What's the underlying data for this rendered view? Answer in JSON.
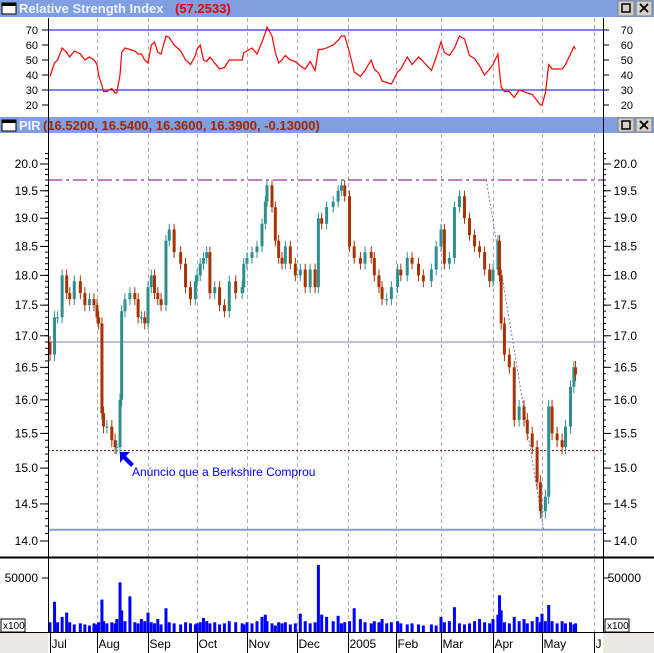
{
  "rsi_panel": {
    "title": "Relative Strength Index",
    "value": "(57.2533)",
    "buttons": [
      "maximize",
      "close"
    ],
    "y_ticks": [
      "20",
      "30",
      "40",
      "50",
      "60",
      "70"
    ],
    "ylim": [
      15,
      80
    ],
    "levels": [
      30,
      70
    ]
  },
  "price_panel": {
    "title": "PIR",
    "value": "(16.5200, 16.5400, 16.3600, 16.3900, -0.13000)",
    "buttons": [
      "maximize",
      "close"
    ],
    "y_ticks": [
      "14.0",
      "14.5",
      "15.0",
      "15.5",
      "16.0",
      "16.5",
      "17.0",
      "17.5",
      "18.0",
      "18.5",
      "19.0",
      "19.5",
      "20.0"
    ],
    "scale": "log",
    "annotation": "Anúncio que a Berkshire Comprou",
    "lines": [
      {
        "type": "horizontal",
        "price": 19.7,
        "style": "dash-dot",
        "color": "#800080"
      },
      {
        "type": "horizontal",
        "price": 16.9,
        "style": "solid",
        "color": "#7f7fc0"
      },
      {
        "type": "horizontal",
        "price": 15.25,
        "style": "dotted",
        "color": "#800000"
      },
      {
        "type": "horizontal",
        "price": 14.15,
        "style": "solid",
        "color": "#7f9fcf"
      },
      {
        "type": "trend",
        "from": [
          "2005-03-28",
          19.7
        ],
        "to": [
          "2005-05-02",
          14.15
        ],
        "style": "dotted",
        "color": "#7777cc"
      }
    ]
  },
  "volume_panel": {
    "y_ticks": [
      "50000"
    ],
    "unit_label": "x100"
  },
  "x_axis": {
    "months": [
      "Jul",
      "Aug",
      "Sep",
      "Oct",
      "Nov",
      "Dec",
      "2005",
      "Feb",
      "Mar",
      "Apr",
      "May",
      "J"
    ]
  },
  "colors": {
    "header_bg": "#7f9fe0",
    "up": "#2f8f8f",
    "down": "#a83200",
    "rsi_line": "#ff0000",
    "rsi_levels": "#0000ff",
    "volume": "#0000ff",
    "annotation": "#0000ff"
  },
  "chart_data": {
    "type": "candlestick+line+bar",
    "fields": [
      "date",
      "close",
      "rsi",
      "volume"
    ],
    "bars": [
      [
        "2004-07-01",
        16.7,
        39,
        9000
      ],
      [
        "2004-07-04",
        17.3,
        48,
        28000
      ],
      [
        "2004-07-06",
        17.3,
        50,
        9000
      ],
      [
        "2004-07-09",
        18.0,
        58,
        14000
      ],
      [
        "2004-07-12",
        17.7,
        55,
        18000
      ],
      [
        "2004-07-14",
        17.6,
        52,
        9000
      ],
      [
        "2004-07-17",
        17.9,
        56,
        7000
      ],
      [
        "2004-07-21",
        17.7,
        54,
        8000
      ],
      [
        "2004-07-24",
        17.5,
        50,
        7000
      ],
      [
        "2004-07-27",
        17.6,
        52,
        6000
      ],
      [
        "2004-07-30",
        17.5,
        50,
        8000
      ],
      [
        "2004-08-01",
        17.3,
        47,
        7000
      ],
      [
        "2004-08-02",
        17.2,
        40,
        9000
      ],
      [
        "2004-08-04",
        15.8,
        33,
        30000
      ],
      [
        "2004-08-05",
        15.6,
        29,
        10000
      ],
      [
        "2004-08-07",
        15.6,
        29,
        8000
      ],
      [
        "2004-08-10",
        15.4,
        31,
        9000
      ],
      [
        "2004-08-12",
        15.3,
        28,
        8000
      ],
      [
        "2004-08-13",
        15.3,
        28,
        12000
      ],
      [
        "2004-08-15",
        16.0,
        40,
        46000
      ],
      [
        "2004-08-16",
        17.4,
        55,
        20000
      ],
      [
        "2004-08-18",
        17.6,
        58,
        10000
      ],
      [
        "2004-08-21",
        17.7,
        57,
        33000
      ],
      [
        "2004-08-24",
        17.6,
        56,
        9000
      ],
      [
        "2004-08-26",
        17.3,
        54,
        8000
      ],
      [
        "2004-08-28",
        17.3,
        54,
        12000
      ],
      [
        "2004-08-30",
        17.2,
        50,
        10000
      ],
      [
        "2004-09-01",
        17.8,
        48,
        18000
      ],
      [
        "2004-09-03",
        18.0,
        60,
        9000
      ],
      [
        "2004-09-05",
        17.7,
        62,
        8000
      ],
      [
        "2004-09-07",
        17.6,
        55,
        12000
      ],
      [
        "2004-09-09",
        17.5,
        54,
        7000
      ],
      [
        "2004-09-12",
        18.6,
        66,
        22000
      ],
      [
        "2004-09-14",
        18.8,
        65,
        9000
      ],
      [
        "2004-09-17",
        18.4,
        60,
        8000
      ],
      [
        "2004-09-21",
        18.2,
        56,
        7000
      ],
      [
        "2004-09-24",
        17.8,
        50,
        9000
      ],
      [
        "2004-09-27",
        17.6,
        47,
        8000
      ],
      [
        "2004-09-30",
        17.9,
        53,
        7000
      ],
      [
        "2004-10-01",
        18.0,
        57,
        8000
      ],
      [
        "2004-10-03",
        18.2,
        60,
        9000
      ],
      [
        "2004-10-05",
        18.3,
        50,
        13000
      ],
      [
        "2004-10-07",
        18.4,
        49,
        10000
      ],
      [
        "2004-10-09",
        17.7,
        52,
        8000
      ],
      [
        "2004-10-12",
        17.8,
        48,
        9000
      ],
      [
        "2004-10-15",
        17.5,
        44,
        7000
      ],
      [
        "2004-10-18",
        17.4,
        45,
        8000
      ],
      [
        "2004-10-21",
        17.9,
        50,
        10000
      ],
      [
        "2004-10-25",
        17.7,
        50,
        9000
      ],
      [
        "2004-10-29",
        17.8,
        50,
        8000
      ],
      [
        "2004-10-30",
        18.2,
        55,
        7000
      ],
      [
        "2004-11-01",
        18.3,
        56,
        9000
      ],
      [
        "2004-11-04",
        18.4,
        58,
        8000
      ],
      [
        "2004-11-07",
        18.5,
        54,
        10000
      ],
      [
        "2004-11-10",
        18.9,
        62,
        14000
      ],
      [
        "2004-11-12",
        19.3,
        68,
        16000
      ],
      [
        "2004-11-13",
        19.6,
        72,
        10000
      ],
      [
        "2004-11-16",
        19.2,
        66,
        8000
      ],
      [
        "2004-11-18",
        18.6,
        55,
        6000
      ],
      [
        "2004-11-20",
        18.3,
        48,
        9000
      ],
      [
        "2004-11-22",
        18.2,
        50,
        8000
      ],
      [
        "2004-11-24",
        18.5,
        53,
        9000
      ],
      [
        "2004-11-27",
        18.2,
        50,
        7000
      ],
      [
        "2004-11-30",
        18.0,
        49,
        8000
      ],
      [
        "2004-12-03",
        18.1,
        46,
        17000
      ],
      [
        "2004-12-06",
        17.8,
        44,
        10000
      ],
      [
        "2004-12-09",
        18.1,
        49,
        8000
      ],
      [
        "2004-12-12",
        17.8,
        43,
        9000
      ],
      [
        "2004-12-14",
        19.0,
        57,
        62000
      ],
      [
        "2004-12-16",
        18.9,
        57,
        16000
      ],
      [
        "2004-12-19",
        19.2,
        58,
        14000
      ],
      [
        "2004-12-23",
        19.3,
        60,
        10000
      ],
      [
        "2004-12-26",
        19.5,
        63,
        15000
      ],
      [
        "2004-12-28",
        19.6,
        66,
        8000
      ],
      [
        "2004-12-30",
        19.4,
        66,
        9000
      ],
      [
        "2005-01-02",
        18.5,
        55,
        10000
      ],
      [
        "2005-01-05",
        18.3,
        42,
        22000
      ],
      [
        "2005-01-09",
        18.2,
        39,
        12000
      ],
      [
        "2005-01-12",
        18.4,
        43,
        9000
      ],
      [
        "2005-01-16",
        18.3,
        50,
        8000
      ],
      [
        "2005-01-18",
        18.0,
        44,
        10000
      ],
      [
        "2005-01-21",
        17.8,
        41,
        9000
      ],
      [
        "2005-01-23",
        17.6,
        36,
        12000
      ],
      [
        "2005-01-26",
        17.6,
        35,
        8000
      ],
      [
        "2005-01-29",
        17.8,
        34,
        9000
      ],
      [
        "2005-02-02",
        18.1,
        42,
        10000
      ],
      [
        "2005-02-04",
        18.0,
        44,
        8000
      ],
      [
        "2005-02-08",
        18.3,
        52,
        7000
      ],
      [
        "2005-02-11",
        18.2,
        47,
        8000
      ],
      [
        "2005-02-15",
        18.0,
        52,
        7000
      ],
      [
        "2005-02-18",
        17.9,
        49,
        6000
      ],
      [
        "2005-02-23",
        18.1,
        43,
        7000
      ],
      [
        "2005-02-26",
        18.5,
        52,
        6000
      ],
      [
        "2005-03-01",
        18.8,
        62,
        14000
      ],
      [
        "2005-03-03",
        18.2,
        55,
        9000
      ],
      [
        "2005-03-06",
        18.3,
        53,
        10000
      ],
      [
        "2005-03-09",
        19.2,
        58,
        23000
      ],
      [
        "2005-03-12",
        19.4,
        66,
        8000
      ],
      [
        "2005-03-15",
        19.0,
        64,
        7000
      ],
      [
        "2005-03-18",
        18.7,
        53,
        8000
      ],
      [
        "2005-03-21",
        18.5,
        51,
        10000
      ],
      [
        "2005-03-24",
        18.4,
        46,
        12000
      ],
      [
        "2005-03-27",
        18.1,
        40,
        9000
      ],
      [
        "2005-03-30",
        17.9,
        44,
        8000
      ],
      [
        "2005-04-01",
        18.1,
        47,
        12000
      ],
      [
        "2005-04-04",
        18.6,
        54,
        16000
      ],
      [
        "2005-04-05",
        18.0,
        42,
        34000
      ],
      [
        "2005-04-06",
        17.2,
        32,
        20000
      ],
      [
        "2005-04-08",
        16.7,
        29,
        9000
      ],
      [
        "2005-04-11",
        16.5,
        29,
        8000
      ],
      [
        "2005-04-14",
        15.7,
        25,
        14000
      ],
      [
        "2005-04-17",
        15.9,
        30,
        10000
      ],
      [
        "2005-04-20",
        15.7,
        29,
        12000
      ],
      [
        "2005-04-22",
        15.5,
        28,
        8000
      ],
      [
        "2005-04-25",
        15.3,
        27,
        10000
      ],
      [
        "2005-04-28",
        14.8,
        23,
        14000
      ],
      [
        "2005-04-30",
        14.4,
        20,
        9000
      ],
      [
        "2005-05-01",
        14.4,
        20,
        17000
      ],
      [
        "2005-05-03",
        14.6,
        28,
        10000
      ],
      [
        "2005-05-05",
        15.9,
        47,
        25000
      ],
      [
        "2005-05-07",
        15.5,
        44,
        10000
      ],
      [
        "2005-05-10",
        15.4,
        44,
        8000
      ],
      [
        "2005-05-13",
        15.3,
        44,
        10000
      ],
      [
        "2005-05-15",
        15.6,
        47,
        8000
      ],
      [
        "2005-05-18",
        16.2,
        54,
        9000
      ],
      [
        "2005-05-20",
        16.5,
        59,
        7000
      ],
      [
        "2005-05-21",
        16.39,
        57.25,
        8000
      ]
    ]
  }
}
